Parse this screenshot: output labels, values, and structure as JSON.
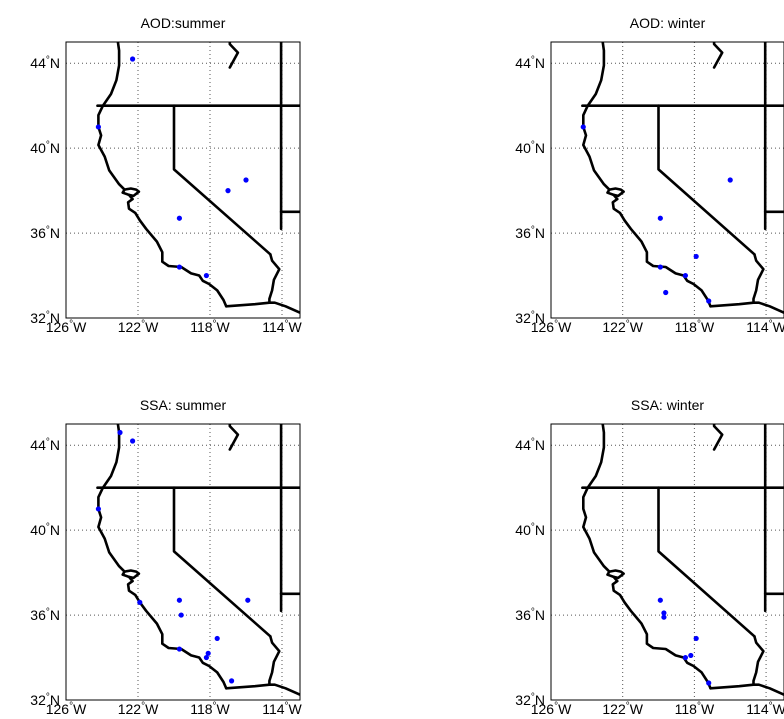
{
  "figure": {
    "projection": "lat-lon (equirectangular)",
    "lon_range": [
      -126,
      -113
    ],
    "lat_range": [
      32,
      45
    ],
    "grid": "dotted",
    "grid_lons": [
      -126,
      -122,
      -118,
      -114
    ],
    "grid_lats": [
      32,
      36,
      40,
      44
    ],
    "x_ticks": [
      {
        "value": -126,
        "label": "126°W"
      },
      {
        "value": -122,
        "label": "122°W"
      },
      {
        "value": -118,
        "label": "118°W"
      },
      {
        "value": -114,
        "label": "114°W"
      }
    ],
    "y_ticks": [
      {
        "value": 32,
        "label": "32°N"
      },
      {
        "value": 36,
        "label": "36°N"
      },
      {
        "value": 40,
        "label": "40°N"
      },
      {
        "value": 44,
        "label": "44°N"
      }
    ],
    "colors": {
      "points": "#0000ff",
      "borders": "#000000",
      "grid": "#555555",
      "background": "#ffffff"
    },
    "base_map": "black outlines of US West Coast, California, Nevada, Oregon and Arizona borders"
  },
  "chart_data": [
    {
      "type": "scatter",
      "title": "AOD:summer",
      "points": [
        {
          "lon": -122.3,
          "lat": 44.2
        },
        {
          "lon": -124.2,
          "lat": 41.0
        },
        {
          "lon": -117.0,
          "lat": 38.0
        },
        {
          "lon": -116.0,
          "lat": 38.5
        },
        {
          "lon": -119.7,
          "lat": 36.7
        },
        {
          "lon": -119.7,
          "lat": 34.4
        },
        {
          "lon": -118.2,
          "lat": 34.0
        }
      ]
    },
    {
      "type": "scatter",
      "title": "AOD: winter",
      "points": [
        {
          "lon": -124.2,
          "lat": 41.0
        },
        {
          "lon": -116.0,
          "lat": 38.5
        },
        {
          "lon": -119.9,
          "lat": 36.7
        },
        {
          "lon": -117.9,
          "lat": 34.9
        },
        {
          "lon": -119.9,
          "lat": 34.4
        },
        {
          "lon": -118.5,
          "lat": 34.0
        },
        {
          "lon": -119.6,
          "lat": 33.2
        },
        {
          "lon": -117.2,
          "lat": 32.8
        }
      ]
    },
    {
      "type": "scatter",
      "title": "SSA: summer",
      "points": [
        {
          "lon": -123.0,
          "lat": 44.6
        },
        {
          "lon": -122.3,
          "lat": 44.2
        },
        {
          "lon": -124.2,
          "lat": 41.0
        },
        {
          "lon": -121.9,
          "lat": 36.6
        },
        {
          "lon": -119.7,
          "lat": 36.7
        },
        {
          "lon": -115.9,
          "lat": 36.7
        },
        {
          "lon": -119.6,
          "lat": 36.0
        },
        {
          "lon": -117.6,
          "lat": 34.9
        },
        {
          "lon": -119.7,
          "lat": 34.4
        },
        {
          "lon": -118.1,
          "lat": 34.2
        },
        {
          "lon": -118.2,
          "lat": 34.0
        },
        {
          "lon": -116.8,
          "lat": 32.9
        }
      ]
    },
    {
      "type": "scatter",
      "title": "SSA: winter",
      "points": [
        {
          "lon": -119.9,
          "lat": 36.7
        },
        {
          "lon": -119.7,
          "lat": 36.1
        },
        {
          "lon": -119.7,
          "lat": 35.9
        },
        {
          "lon": -117.9,
          "lat": 34.9
        },
        {
          "lon": -118.2,
          "lat": 34.1
        },
        {
          "lon": -118.5,
          "lat": 34.0
        },
        {
          "lon": -117.2,
          "lat": 32.8
        }
      ]
    }
  ]
}
